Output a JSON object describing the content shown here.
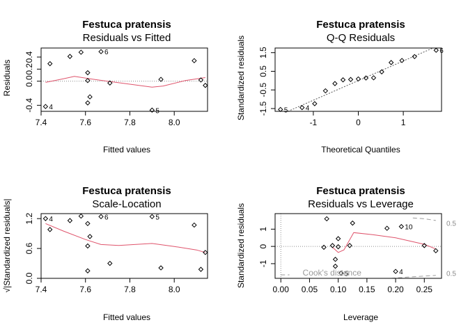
{
  "colors": {
    "smooth": "#DF536B",
    "ref": "#8c8c8c",
    "cook": "#9a9a9a"
  },
  "chart_data": [
    {
      "type": "scatter",
      "title": "Festuca pratensis",
      "subtitle": "Residuals vs Fitted",
      "xlabel": "Fitted values",
      "ylabel": "Residuals",
      "xlim": [
        7.4,
        8.15
      ],
      "ylim": [
        -0.5,
        0.55
      ],
      "xticks": [
        "7.4",
        "7.6",
        "7.8",
        "8.0"
      ],
      "xtick_values": [
        7.4,
        7.6,
        7.8,
        8.0
      ],
      "yticks": [
        "-0.4",
        "0.0",
        "0.2",
        "0.4"
      ],
      "ytick_values": [
        -0.4,
        0.0,
        0.2,
        0.4
      ],
      "points": [
        {
          "x": 7.42,
          "y": -0.42,
          "label": "4"
        },
        {
          "x": 7.44,
          "y": 0.29
        },
        {
          "x": 7.53,
          "y": 0.41
        },
        {
          "x": 7.58,
          "y": 0.48
        },
        {
          "x": 7.61,
          "y": 0.14
        },
        {
          "x": 7.61,
          "y": 0.01
        },
        {
          "x": 7.62,
          "y": -0.26
        },
        {
          "x": 7.61,
          "y": -0.36
        },
        {
          "x": 7.67,
          "y": 0.49,
          "label": "6"
        },
        {
          "x": 7.71,
          "y": -0.03
        },
        {
          "x": 7.9,
          "y": -0.48,
          "label": "5"
        },
        {
          "x": 7.94,
          "y": 0.03
        },
        {
          "x": 8.09,
          "y": 0.34
        },
        {
          "x": 8.12,
          "y": 0.02
        },
        {
          "x": 8.14,
          "y": -0.07
        }
      ],
      "smooth": [
        {
          "x": 7.42,
          "y": -0.02
        },
        {
          "x": 7.5,
          "y": 0.04
        },
        {
          "x": 7.55,
          "y": 0.08
        },
        {
          "x": 7.62,
          "y": 0.04
        },
        {
          "x": 7.7,
          "y": 0.0
        },
        {
          "x": 7.8,
          "y": -0.05
        },
        {
          "x": 7.9,
          "y": -0.1
        },
        {
          "x": 7.95,
          "y": -0.08
        },
        {
          "x": 8.05,
          "y": 0.01
        },
        {
          "x": 8.14,
          "y": 0.06
        }
      ],
      "hline": 0
    },
    {
      "type": "scatter",
      "title": "Festuca pratensis",
      "subtitle": "Q-Q Residuals",
      "xlabel": "Theoretical Quantiles",
      "ylabel": "Standardized residuals",
      "xlim": [
        -1.85,
        1.85
      ],
      "ylim": [
        -1.65,
        1.75
      ],
      "xticks": [
        "-1",
        "0",
        "1"
      ],
      "xtick_values": [
        -1,
        0,
        1
      ],
      "yticks": [
        "-1.5",
        "-0.5",
        "0.5",
        "1.5"
      ],
      "ytick_values": [
        -1.5,
        -0.5,
        0.5,
        1.5
      ],
      "points": [
        {
          "x": -1.73,
          "y": -1.55,
          "label": "5"
        },
        {
          "x": -1.25,
          "y": -1.45,
          "label": "4"
        },
        {
          "x": -0.97,
          "y": -1.24
        },
        {
          "x": -0.73,
          "y": -0.55
        },
        {
          "x": -0.52,
          "y": -0.16
        },
        {
          "x": -0.34,
          "y": 0.04
        },
        {
          "x": -0.17,
          "y": 0.06
        },
        {
          "x": 0.0,
          "y": 0.09
        },
        {
          "x": 0.17,
          "y": 0.14
        },
        {
          "x": 0.34,
          "y": 0.15
        },
        {
          "x": 0.52,
          "y": 0.47
        },
        {
          "x": 0.73,
          "y": 0.97
        },
        {
          "x": 0.97,
          "y": 1.08
        },
        {
          "x": 1.25,
          "y": 1.29
        },
        {
          "x": 1.73,
          "y": 1.63,
          "label": "6"
        }
      ],
      "refline": [
        {
          "x": -1.85,
          "y": -1.95
        },
        {
          "x": 1.85,
          "y": 1.95
        }
      ]
    },
    {
      "type": "scatter",
      "title": "Festuca pratensis",
      "subtitle": "Scale-Location",
      "xlabel": "Fitted values",
      "ylabel": "√|Standardized residuals|",
      "xlim": [
        7.4,
        8.15
      ],
      "ylim": [
        0.0,
        1.3
      ],
      "xticks": [
        "7.4",
        "7.6",
        "7.8",
        "8.0"
      ],
      "xtick_values": [
        7.4,
        7.6,
        7.8,
        8.0
      ],
      "yticks": [
        "0.0",
        "0.6",
        "1.2"
      ],
      "ytick_values": [
        0.0,
        0.6,
        1.2
      ],
      "points": [
        {
          "x": 7.42,
          "y": 1.2,
          "label": "4"
        },
        {
          "x": 7.44,
          "y": 0.98
        },
        {
          "x": 7.53,
          "y": 1.16
        },
        {
          "x": 7.58,
          "y": 1.25
        },
        {
          "x": 7.61,
          "y": 0.65
        },
        {
          "x": 7.61,
          "y": 1.1
        },
        {
          "x": 7.62,
          "y": 0.84
        },
        {
          "x": 7.61,
          "y": 0.15
        },
        {
          "x": 7.67,
          "y": 1.24,
          "label": "6"
        },
        {
          "x": 7.71,
          "y": 0.3
        },
        {
          "x": 7.9,
          "y": 1.24,
          "label": "5"
        },
        {
          "x": 7.94,
          "y": 0.21
        },
        {
          "x": 8.09,
          "y": 1.07
        },
        {
          "x": 8.12,
          "y": 0.18
        },
        {
          "x": 8.14,
          "y": 0.52
        }
      ],
      "smooth": [
        {
          "x": 7.42,
          "y": 1.1
        },
        {
          "x": 7.5,
          "y": 0.95
        },
        {
          "x": 7.6,
          "y": 0.78
        },
        {
          "x": 7.67,
          "y": 0.68
        },
        {
          "x": 7.75,
          "y": 0.66
        },
        {
          "x": 7.9,
          "y": 0.7
        },
        {
          "x": 8.0,
          "y": 0.64
        },
        {
          "x": 8.1,
          "y": 0.57
        },
        {
          "x": 8.14,
          "y": 0.52
        }
      ]
    },
    {
      "type": "scatter",
      "title": "Festuca pratensis",
      "subtitle": "Residuals vs Leverage",
      "xlabel": "Leverage",
      "ylabel": "Standardized residuals",
      "xlim": [
        -0.01,
        0.28
      ],
      "ylim": [
        -1.85,
        1.9
      ],
      "xticks": [
        "0.00",
        "0.05",
        "0.10",
        "0.15",
        "0.20",
        "0.25"
      ],
      "xtick_values": [
        0.0,
        0.05,
        0.1,
        0.15,
        0.2,
        0.25
      ],
      "yticks": [
        "-1",
        "0",
        "1"
      ],
      "ytick_values": [
        -1,
        0,
        1
      ],
      "points": [
        {
          "x": 0.075,
          "y": -0.05
        },
        {
          "x": 0.08,
          "y": 1.6
        },
        {
          "x": 0.09,
          "y": 0.05
        },
        {
          "x": 0.095,
          "y": -0.75
        },
        {
          "x": 0.095,
          "y": -1.15
        },
        {
          "x": 0.1,
          "y": 0.45
        },
        {
          "x": 0.1,
          "y": -0.02
        },
        {
          "x": 0.105,
          "y": -1.55,
          "label": "5"
        },
        {
          "x": 0.12,
          "y": 0.05
        },
        {
          "x": 0.125,
          "y": 1.35
        },
        {
          "x": 0.185,
          "y": 1.05
        },
        {
          "x": 0.2,
          "y": -1.45,
          "label": "4"
        },
        {
          "x": 0.21,
          "y": 1.15,
          "label": "10"
        },
        {
          "x": 0.25,
          "y": 0.05
        },
        {
          "x": 0.27,
          "y": -0.25
        }
      ],
      "smooth": [
        {
          "x": 0.09,
          "y": -0.05
        },
        {
          "x": 0.1,
          "y": -0.35
        },
        {
          "x": 0.11,
          "y": -0.2
        },
        {
          "x": 0.127,
          "y": 0.8
        },
        {
          "x": 0.16,
          "y": 0.68
        },
        {
          "x": 0.2,
          "y": 0.5
        },
        {
          "x": 0.25,
          "y": 0.12
        },
        {
          "x": 0.27,
          "y": -0.15
        }
      ],
      "hline": 0,
      "vline": 0,
      "cook_legend": "Cook's distance",
      "cook_labels": [
        {
          "text": "0.5",
          "x": 0.285,
          "y": 1.35
        },
        {
          "text": "0.5",
          "x": 0.285,
          "y": -1.55
        }
      ],
      "cook_curves": [
        [
          {
            "x": 0.23,
            "y": 1.65
          },
          {
            "x": 0.25,
            "y": 1.6
          },
          {
            "x": 0.27,
            "y": 1.5
          }
        ],
        [
          {
            "x": 0.18,
            "y": -1.88
          },
          {
            "x": 0.22,
            "y": -1.78
          },
          {
            "x": 0.27,
            "y": -1.68
          }
        ],
        [
          {
            "x": 0.0,
            "y": -1.65
          },
          {
            "x": 0.015,
            "y": -1.65
          }
        ]
      ]
    }
  ]
}
